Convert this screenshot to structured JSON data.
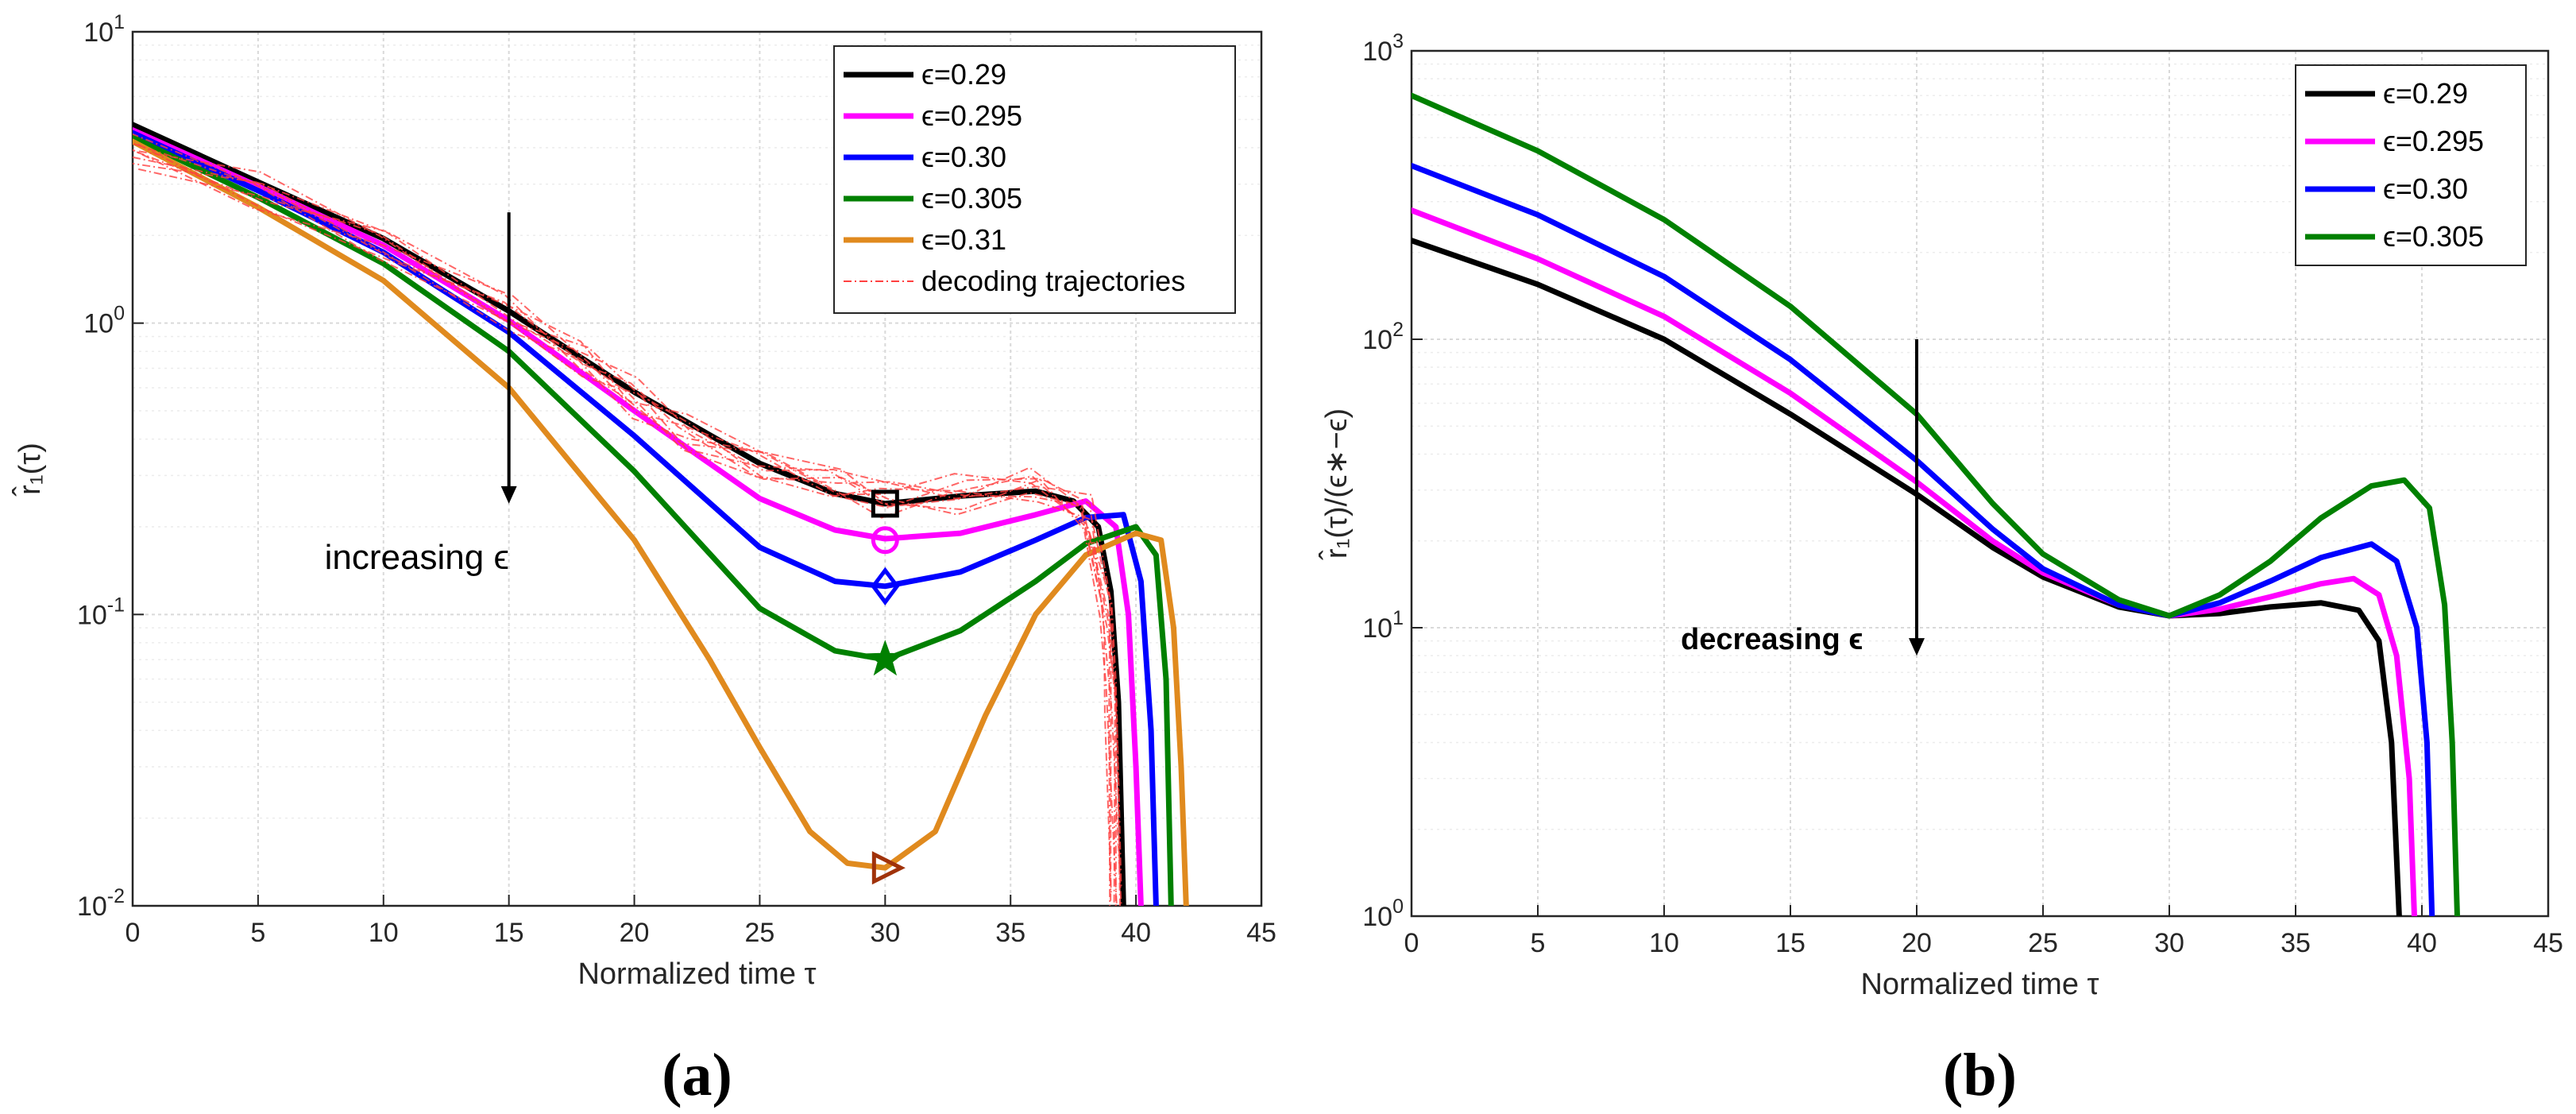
{
  "chart_data": [
    {
      "panel_label": "(a)",
      "type": "line",
      "xlabel": "Normalized time τ",
      "ylabel": "r̂₁(τ)",
      "yscale": "log",
      "xlim": [
        0,
        45
      ],
      "ylim": [
        0.01,
        10
      ],
      "xticks": [
        "0",
        "5",
        "10",
        "15",
        "20",
        "25",
        "30",
        "35",
        "40",
        "45"
      ],
      "yticks": [
        {
          "base": "10",
          "exp": "-2"
        },
        {
          "base": "10",
          "exp": "-1"
        },
        {
          "base": "10",
          "exp": "0"
        },
        {
          "base": "10",
          "exp": "1"
        }
      ],
      "grid": true,
      "legend_position": "top-right",
      "annotation": {
        "text": "increasing ϵ",
        "arrow_x": 15,
        "arrow_from": 2.4,
        "arrow_to": 0.24
      },
      "series": [
        {
          "name": "ϵ=0.29",
          "color": "#000000",
          "marker": "square",
          "marker_point": [
            30,
            0.24
          ],
          "points": [
            [
              0,
              4.8
            ],
            [
              5,
              3.05
            ],
            [
              10,
              1.95
            ],
            [
              15,
              1.1
            ],
            [
              20,
              0.58
            ],
            [
              25,
              0.33
            ],
            [
              28,
              0.26
            ],
            [
              30,
              0.24
            ],
            [
              33,
              0.255
            ],
            [
              36,
              0.265
            ],
            [
              37.5,
              0.245
            ],
            [
              38.5,
              0.2
            ],
            [
              39,
              0.12
            ],
            [
              39.3,
              0.05
            ],
            [
              39.5,
              0.01
            ]
          ]
        },
        {
          "name": "ϵ=0.295",
          "color": "#ff00ff",
          "marker": "circle",
          "marker_point": [
            30,
            0.18
          ],
          "points": [
            [
              0,
              4.6
            ],
            [
              5,
              2.95
            ],
            [
              10,
              1.85
            ],
            [
              15,
              1.02
            ],
            [
              20,
              0.5
            ],
            [
              25,
              0.25
            ],
            [
              28,
              0.195
            ],
            [
              30,
              0.182
            ],
            [
              33,
              0.19
            ],
            [
              36,
              0.22
            ],
            [
              38,
              0.245
            ],
            [
              39.2,
              0.2
            ],
            [
              39.7,
              0.1
            ],
            [
              40,
              0.03
            ],
            [
              40.2,
              0.01
            ]
          ]
        },
        {
          "name": "ϵ=0.30",
          "color": "#0000ff",
          "marker": "diamond",
          "marker_point": [
            30,
            0.125
          ],
          "points": [
            [
              0,
              4.5
            ],
            [
              5,
              2.85
            ],
            [
              10,
              1.75
            ],
            [
              15,
              0.93
            ],
            [
              20,
              0.41
            ],
            [
              25,
              0.17
            ],
            [
              28,
              0.13
            ],
            [
              30,
              0.125
            ],
            [
              33,
              0.14
            ],
            [
              36,
              0.18
            ],
            [
              38,
              0.215
            ],
            [
              39.5,
              0.22
            ],
            [
              40.2,
              0.13
            ],
            [
              40.6,
              0.04
            ],
            [
              40.8,
              0.01
            ]
          ]
        },
        {
          "name": "ϵ=0.305",
          "color": "#008000",
          "marker": "star",
          "marker_point": [
            30,
            0.07
          ],
          "points": [
            [
              0,
              4.35
            ],
            [
              5,
              2.7
            ],
            [
              10,
              1.6
            ],
            [
              15,
              0.8
            ],
            [
              20,
              0.31
            ],
            [
              25,
              0.105
            ],
            [
              28,
              0.075
            ],
            [
              30,
              0.07
            ],
            [
              33,
              0.088
            ],
            [
              36,
              0.13
            ],
            [
              38,
              0.175
            ],
            [
              40,
              0.2
            ],
            [
              40.8,
              0.16
            ],
            [
              41.2,
              0.06
            ],
            [
              41.4,
              0.01
            ]
          ]
        },
        {
          "name": "ϵ=0.31",
          "color": "#e08a1e",
          "marker": "triangle-right",
          "marker_point": [
            30,
            0.0135
          ],
          "points": [
            [
              0,
              4.2
            ],
            [
              5,
              2.5
            ],
            [
              10,
              1.4
            ],
            [
              15,
              0.6
            ],
            [
              20,
              0.18
            ],
            [
              23,
              0.07
            ],
            [
              25,
              0.035
            ],
            [
              27,
              0.018
            ],
            [
              28.5,
              0.014
            ],
            [
              30,
              0.0135
            ],
            [
              32,
              0.018
            ],
            [
              34,
              0.045
            ],
            [
              36,
              0.1
            ],
            [
              38,
              0.16
            ],
            [
              40,
              0.19
            ],
            [
              41,
              0.18
            ],
            [
              41.5,
              0.09
            ],
            [
              41.8,
              0.03
            ],
            [
              42,
              0.01
            ]
          ]
        },
        {
          "name": "decoding trajectories",
          "color": "#ff4040",
          "style": "dashdot",
          "points": [
            [
              0,
              3.9
            ],
            [
              5,
              2.8
            ],
            [
              10,
              1.85
            ],
            [
              15,
              1.1
            ],
            [
              18,
              0.75
            ],
            [
              20,
              0.55
            ],
            [
              22,
              0.42
            ],
            [
              25,
              0.33
            ],
            [
              28,
              0.28
            ],
            [
              30,
              0.25
            ],
            [
              33,
              0.26
            ],
            [
              36,
              0.28
            ],
            [
              38,
              0.22
            ],
            [
              38.8,
              0.1
            ],
            [
              39,
              0.05
            ],
            [
              39.2,
              0.01
            ]
          ]
        }
      ]
    },
    {
      "panel_label": "(b)",
      "type": "line",
      "xlabel": "Normalized time τ",
      "ylabel": "r̂₁(τ)/(ϵ∗−ϵ)",
      "yscale": "log",
      "xlim": [
        0,
        45
      ],
      "ylim": [
        1,
        1000
      ],
      "xticks": [
        "0",
        "5",
        "10",
        "15",
        "20",
        "25",
        "30",
        "35",
        "40",
        "45"
      ],
      "yticks": [
        {
          "base": "10",
          "exp": "0"
        },
        {
          "base": "10",
          "exp": "1"
        },
        {
          "base": "10",
          "exp": "2"
        },
        {
          "base": "10",
          "exp": "3"
        }
      ],
      "grid": true,
      "legend_position": "top-right",
      "annotation": {
        "text": "decreasing ϵ",
        "arrow_x": 20,
        "arrow_from": 100,
        "arrow_to": 8
      },
      "series": [
        {
          "name": "ϵ=0.29",
          "color": "#000000",
          "points": [
            [
              0,
              220
            ],
            [
              5,
              155
            ],
            [
              10,
              100
            ],
            [
              15,
              55
            ],
            [
              20,
              29
            ],
            [
              23,
              19
            ],
            [
              25,
              15
            ],
            [
              28,
              11.8
            ],
            [
              30,
              11
            ],
            [
              32,
              11.2
            ],
            [
              34,
              11.8
            ],
            [
              36,
              12.2
            ],
            [
              37.5,
              11.5
            ],
            [
              38.3,
              9
            ],
            [
              38.8,
              4
            ],
            [
              39.1,
              1
            ]
          ]
        },
        {
          "name": "ϵ=0.295",
          "color": "#ff00ff",
          "points": [
            [
              0,
              280
            ],
            [
              5,
              190
            ],
            [
              10,
              120
            ],
            [
              15,
              65
            ],
            [
              20,
              32
            ],
            [
              23,
              20
            ],
            [
              25,
              15.5
            ],
            [
              28,
              12
            ],
            [
              30,
              11
            ],
            [
              32,
              11.6
            ],
            [
              34,
              12.8
            ],
            [
              36,
              14.2
            ],
            [
              37.3,
              14.8
            ],
            [
              38.3,
              13
            ],
            [
              39,
              8
            ],
            [
              39.5,
              3
            ],
            [
              39.7,
              1
            ]
          ]
        },
        {
          "name": "ϵ=0.30",
          "color": "#0000ff",
          "points": [
            [
              0,
              400
            ],
            [
              5,
              270
            ],
            [
              10,
              165
            ],
            [
              15,
              85
            ],
            [
              20,
              38
            ],
            [
              23,
              22
            ],
            [
              25,
              16
            ],
            [
              28,
              12
            ],
            [
              30,
              11
            ],
            [
              32,
              12.2
            ],
            [
              34,
              14.5
            ],
            [
              36,
              17.5
            ],
            [
              38,
              19.5
            ],
            [
              39,
              17
            ],
            [
              39.8,
              10
            ],
            [
              40.2,
              4
            ],
            [
              40.4,
              1
            ]
          ]
        },
        {
          "name": "ϵ=0.305",
          "color": "#008000",
          "points": [
            [
              0,
              700
            ],
            [
              5,
              450
            ],
            [
              10,
              260
            ],
            [
              15,
              130
            ],
            [
              20,
              55
            ],
            [
              23,
              27
            ],
            [
              25,
              18
            ],
            [
              28,
              12.5
            ],
            [
              30,
              11
            ],
            [
              32,
              13
            ],
            [
              34,
              17
            ],
            [
              36,
              24
            ],
            [
              38,
              31
            ],
            [
              39.3,
              32.5
            ],
            [
              40.3,
              26
            ],
            [
              40.9,
              12
            ],
            [
              41.2,
              4
            ],
            [
              41.4,
              1
            ]
          ]
        }
      ]
    }
  ]
}
